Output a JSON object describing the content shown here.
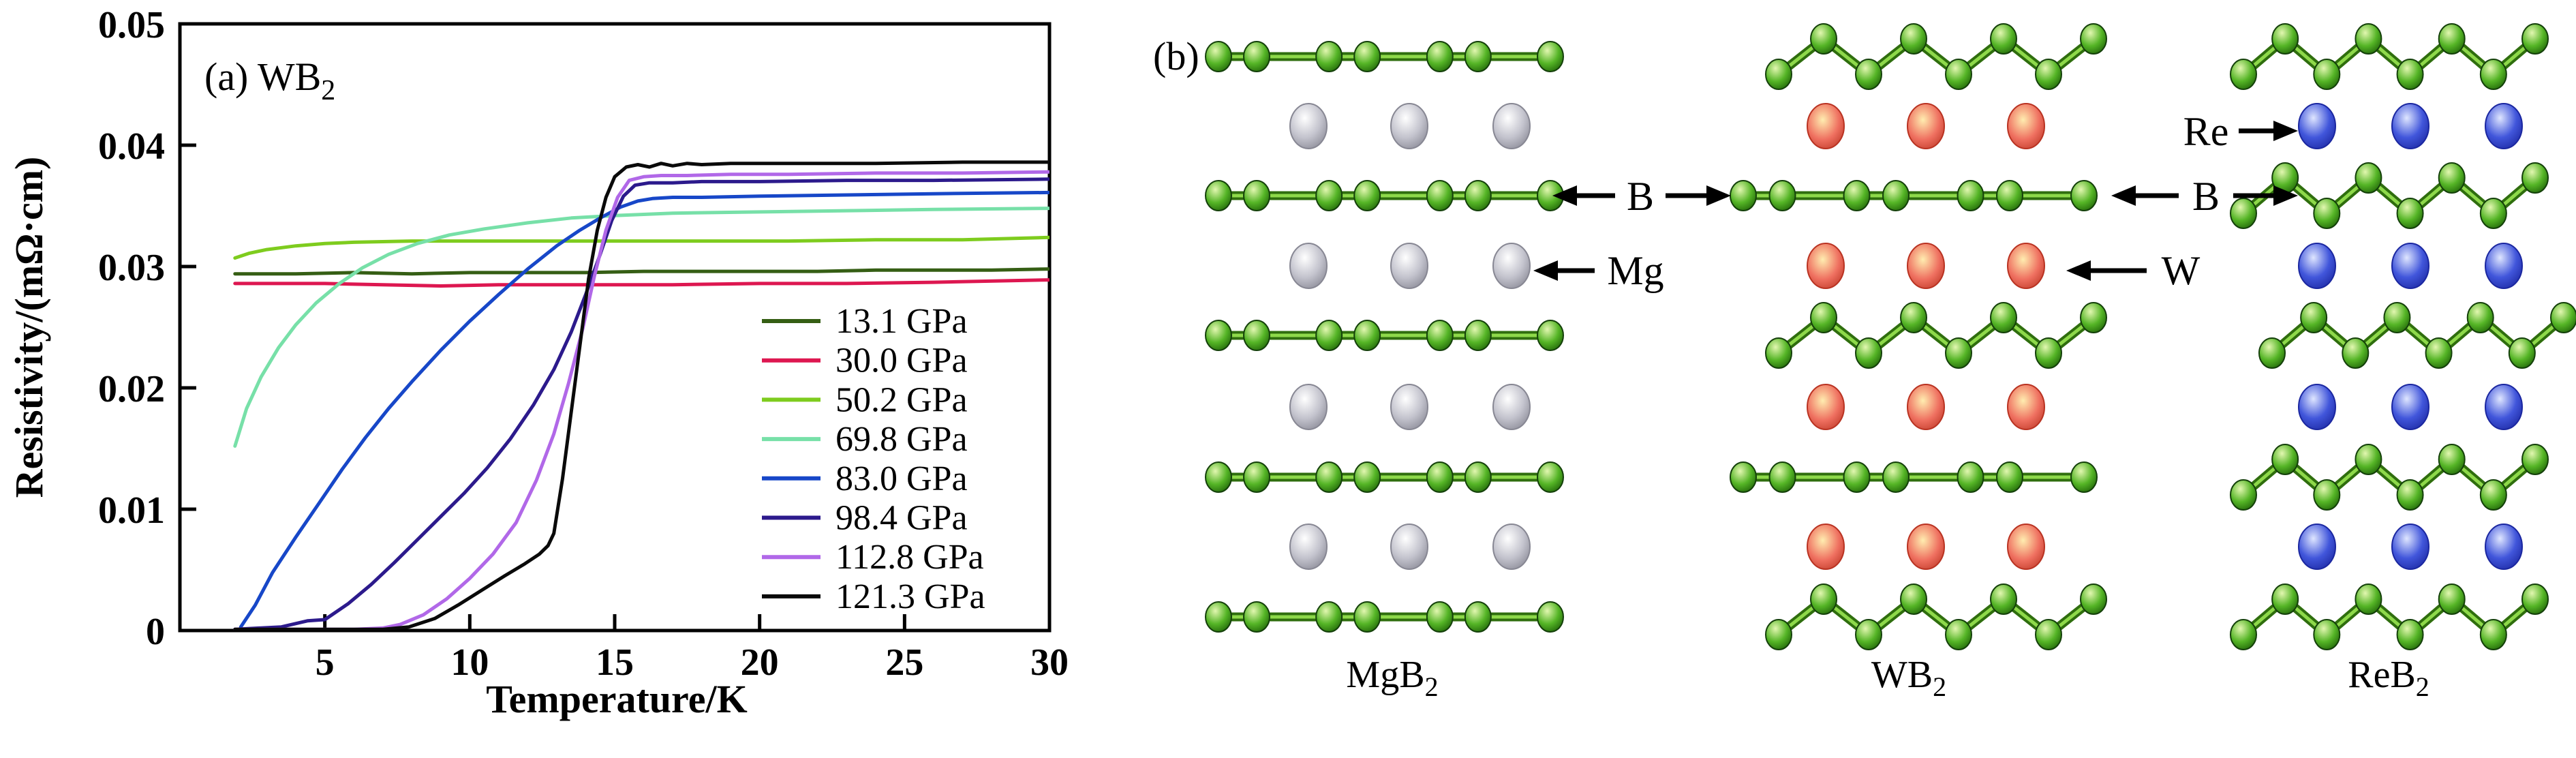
{
  "figure": {
    "background": "#ffffff",
    "panel_a_tag": "(a)",
    "panel_b_tag": "(b)"
  },
  "chart_data": {
    "type": "line",
    "title": {
      "text": "(a) WB",
      "sub": "2"
    },
    "xlabel": "Temperature/K",
    "ylabel": "Resistivity/(mΩ·cm)",
    "xlim": [
      0,
      30
    ],
    "ylim": [
      0,
      0.05
    ],
    "xticks": {
      "values": [
        5,
        10,
        15,
        20,
        25,
        30
      ],
      "labels": [
        "5",
        "10",
        "15",
        "20",
        "25",
        "30"
      ]
    },
    "yticks": {
      "values": [
        0,
        0.01,
        0.02,
        0.03,
        0.04,
        0.05
      ],
      "labels": [
        "0",
        "0.01",
        "0.02",
        "0.03",
        "0.04",
        "0.05"
      ]
    },
    "grid": false,
    "legend_position": "inside-lower-right",
    "frame_color": "#000000",
    "series": [
      {
        "name": "13.1 GPa",
        "color": "#355e14",
        "points": [
          [
            1.9,
            0.0294
          ],
          [
            4,
            0.0294
          ],
          [
            6,
            0.0295
          ],
          [
            8,
            0.0294
          ],
          [
            10,
            0.0295
          ],
          [
            12,
            0.0295
          ],
          [
            14,
            0.0295
          ],
          [
            16,
            0.0296
          ],
          [
            18,
            0.0296
          ],
          [
            20,
            0.0296
          ],
          [
            22,
            0.0296
          ],
          [
            24,
            0.0297
          ],
          [
            26,
            0.0297
          ],
          [
            28,
            0.0297
          ],
          [
            30,
            0.0298
          ]
        ]
      },
      {
        "name": "30.0 GPa",
        "color": "#dd1750",
        "points": [
          [
            1.9,
            0.0286
          ],
          [
            3,
            0.0286
          ],
          [
            5,
            0.0286
          ],
          [
            7,
            0.0285
          ],
          [
            9,
            0.0284
          ],
          [
            11,
            0.0285
          ],
          [
            13,
            0.0285
          ],
          [
            15,
            0.0285
          ],
          [
            17,
            0.0285
          ],
          [
            20,
            0.0286
          ],
          [
            23,
            0.0286
          ],
          [
            26,
            0.0287
          ],
          [
            30,
            0.0289
          ]
        ]
      },
      {
        "name": "50.2 GPa",
        "color": "#7ecc1e",
        "points": [
          [
            1.9,
            0.0307
          ],
          [
            2.4,
            0.0311
          ],
          [
            3,
            0.0314
          ],
          [
            4,
            0.0317
          ],
          [
            5,
            0.0319
          ],
          [
            6,
            0.032
          ],
          [
            8,
            0.0321
          ],
          [
            10,
            0.0321
          ],
          [
            12,
            0.0321
          ],
          [
            15,
            0.0321
          ],
          [
            18,
            0.0321
          ],
          [
            21,
            0.0321
          ],
          [
            24,
            0.0322
          ],
          [
            27,
            0.0322
          ],
          [
            30,
            0.0324
          ]
        ]
      },
      {
        "name": "69.8 GPa",
        "color": "#77e0a8",
        "points": [
          [
            1.9,
            0.0152
          ],
          [
            2.3,
            0.0183
          ],
          [
            2.8,
            0.0209
          ],
          [
            3.4,
            0.0233
          ],
          [
            4,
            0.0252
          ],
          [
            4.7,
            0.027
          ],
          [
            5.5,
            0.0286
          ],
          [
            6.3,
            0.0299
          ],
          [
            7.2,
            0.031
          ],
          [
            8.2,
            0.0319
          ],
          [
            9.3,
            0.0326
          ],
          [
            10.5,
            0.0331
          ],
          [
            12,
            0.0336
          ],
          [
            13.5,
            0.034
          ],
          [
            15,
            0.0342
          ],
          [
            17,
            0.0344
          ],
          [
            20,
            0.0345
          ],
          [
            23,
            0.0346
          ],
          [
            26,
            0.0347
          ],
          [
            30,
            0.0348
          ]
        ]
      },
      {
        "name": "83.0 GPa",
        "color": "#1747c8",
        "points": [
          [
            2.1,
            0.0003
          ],
          [
            2.6,
            0.0021
          ],
          [
            3.2,
            0.0048
          ],
          [
            4,
            0.0077
          ],
          [
            4.8,
            0.0105
          ],
          [
            5.6,
            0.0133
          ],
          [
            6.4,
            0.0159
          ],
          [
            7.2,
            0.0183
          ],
          [
            8,
            0.0205
          ],
          [
            9,
            0.0231
          ],
          [
            10,
            0.0255
          ],
          [
            11,
            0.0277
          ],
          [
            12,
            0.0298
          ],
          [
            13,
            0.0317
          ],
          [
            13.8,
            0.033
          ],
          [
            14.5,
            0.034
          ],
          [
            15.2,
            0.0349
          ],
          [
            15.8,
            0.0354
          ],
          [
            16.3,
            0.0356
          ],
          [
            17,
            0.0357
          ],
          [
            18,
            0.0357
          ],
          [
            20,
            0.0358
          ],
          [
            23,
            0.0359
          ],
          [
            26,
            0.036
          ],
          [
            30,
            0.0361
          ]
        ]
      },
      {
        "name": "98.4 GPa",
        "color": "#2c1a8c",
        "points": [
          [
            1.9,
            0.0001
          ],
          [
            3.5,
            0.0003
          ],
          [
            4.4,
            0.0008
          ],
          [
            5,
            0.0009
          ],
          [
            5.8,
            0.0022
          ],
          [
            6.6,
            0.0038
          ],
          [
            7.4,
            0.0056
          ],
          [
            8.2,
            0.0075
          ],
          [
            9,
            0.0094
          ],
          [
            9.8,
            0.0113
          ],
          [
            10.6,
            0.0134
          ],
          [
            11.4,
            0.0158
          ],
          [
            12.2,
            0.0186
          ],
          [
            12.9,
            0.0215
          ],
          [
            13.5,
            0.0246
          ],
          [
            14,
            0.0277
          ],
          [
            14.5,
            0.031
          ],
          [
            14.9,
            0.0338
          ],
          [
            15.3,
            0.0358
          ],
          [
            15.7,
            0.0367
          ],
          [
            16.2,
            0.0369
          ],
          [
            17,
            0.0369
          ],
          [
            18,
            0.037
          ],
          [
            20,
            0.037
          ],
          [
            23,
            0.0371
          ],
          [
            26,
            0.0371
          ],
          [
            30,
            0.0372
          ]
        ]
      },
      {
        "name": "112.8 GPa",
        "color": "#b168e8",
        "points": [
          [
            1.9,
            0.0001
          ],
          [
            5,
            0.0001
          ],
          [
            6,
            0.0001
          ],
          [
            7,
            0.0002
          ],
          [
            7.6,
            0.0005
          ],
          [
            8.4,
            0.0013
          ],
          [
            9.2,
            0.0026
          ],
          [
            10,
            0.0043
          ],
          [
            10.8,
            0.0063
          ],
          [
            11.6,
            0.0089
          ],
          [
            12.3,
            0.0124
          ],
          [
            12.9,
            0.0162
          ],
          [
            13.4,
            0.0203
          ],
          [
            13.9,
            0.0249
          ],
          [
            14.3,
            0.0292
          ],
          [
            14.7,
            0.033
          ],
          [
            15.1,
            0.0357
          ],
          [
            15.5,
            0.0371
          ],
          [
            16,
            0.0374
          ],
          [
            16.6,
            0.0375
          ],
          [
            17.5,
            0.0375
          ],
          [
            19,
            0.0376
          ],
          [
            21,
            0.0376
          ],
          [
            24,
            0.0377
          ],
          [
            27,
            0.0377
          ],
          [
            30,
            0.0378
          ]
        ]
      },
      {
        "name": "121.3 GPa",
        "color": "#0a0a0a",
        "points": [
          [
            1.9,
            0.0001
          ],
          [
            5.5,
            0.0001
          ],
          [
            7,
            0.0001
          ],
          [
            7.9,
            0.0003
          ],
          [
            8.8,
            0.001
          ],
          [
            9.6,
            0.0021
          ],
          [
            10.4,
            0.0033
          ],
          [
            11.2,
            0.0045
          ],
          [
            11.9,
            0.0055
          ],
          [
            12.4,
            0.0063
          ],
          [
            12.7,
            0.007
          ],
          [
            12.9,
            0.008
          ],
          [
            13.2,
            0.0125
          ],
          [
            13.5,
            0.018
          ],
          [
            13.8,
            0.0235
          ],
          [
            14.1,
            0.029
          ],
          [
            14.4,
            0.033
          ],
          [
            14.7,
            0.0357
          ],
          [
            15,
            0.0374
          ],
          [
            15.4,
            0.0382
          ],
          [
            15.8,
            0.0384
          ],
          [
            16.2,
            0.0382
          ],
          [
            16.6,
            0.0385
          ],
          [
            17,
            0.0383
          ],
          [
            17.5,
            0.0385
          ],
          [
            18,
            0.0384
          ],
          [
            19,
            0.0385
          ],
          [
            21,
            0.0385
          ],
          [
            24,
            0.0385
          ],
          [
            27,
            0.0386
          ],
          [
            30,
            0.0386
          ]
        ]
      }
    ]
  },
  "panel_b": {
    "panel_label": "(b)",
    "structures": [
      {
        "key": "MgB2",
        "label": {
          "text": "MgB",
          "sub": "2"
        },
        "metal": "Mg",
        "b_layers": [
          "flat",
          "flat",
          "flat",
          "flat",
          "flat"
        ]
      },
      {
        "key": "WB2",
        "label": {
          "text": "WB",
          "sub": "2"
        },
        "metal": "W",
        "b_layers": [
          "zigzag",
          "flat",
          "zigzag",
          "flat",
          "zigzag"
        ]
      },
      {
        "key": "ReB2",
        "label": {
          "text": "ReB",
          "sub": "2"
        },
        "metal": "Re",
        "b_layers": [
          "zigzag",
          "zigzag",
          "zigzag",
          "zigzag",
          "zigzag"
        ]
      }
    ],
    "annotations": {
      "b_left": "B",
      "b_right": "B",
      "mg": "Mg",
      "w": "W",
      "re": "Re"
    },
    "colors": {
      "boron_body": "#55b526",
      "boron_edge": "#1e6207",
      "mg_body": "#c3c3cd",
      "mg_edge": "#878793",
      "w_body": "#ef7060",
      "w_edge": "#b93322",
      "re_body": "#4156db",
      "re_edge": "#1b27a0",
      "bond_dark": "#2f6e0e",
      "bond_light": "#8ed94a",
      "arrow": "#000000"
    }
  }
}
